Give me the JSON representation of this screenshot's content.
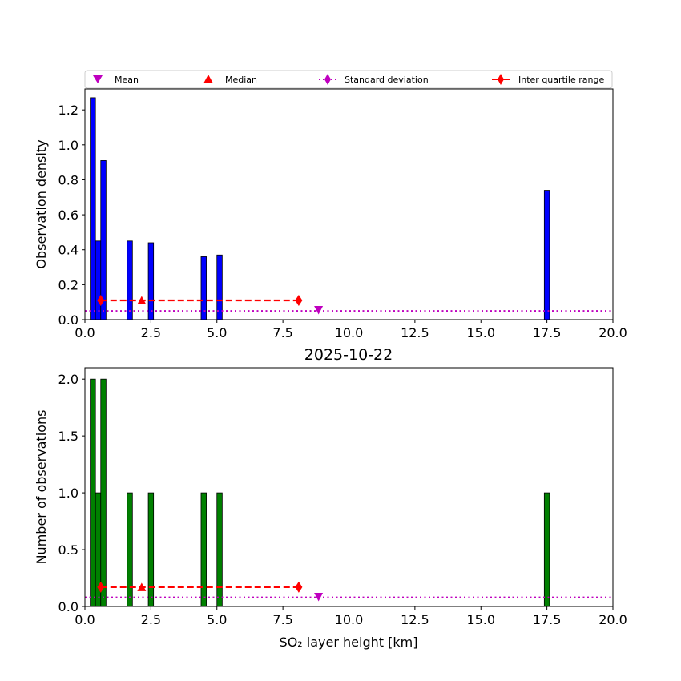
{
  "title": "2025-10-22",
  "legend": {
    "mean": "Mean",
    "median": "Median",
    "std": "Standard deviation",
    "iqr": "Inter quartile range"
  },
  "colors": {
    "top_bars": "#0000ff",
    "bottom_bars": "#008000",
    "mean": "#bf00bf",
    "median": "#ff0000",
    "std": "#bf00bf",
    "iqr": "#ff0000"
  },
  "chart_data": [
    {
      "type": "bar",
      "panel": "top",
      "xlabel": "",
      "ylabel": "Observation density",
      "xlim": [
        0,
        20
      ],
      "ylim": [
        0,
        1.32
      ],
      "xticks": [
        0.0,
        2.5,
        5.0,
        7.5,
        10.0,
        12.5,
        15.0,
        17.5,
        20.0
      ],
      "xtick_labels": [
        "0.0",
        "2.5",
        "5.0",
        "7.5",
        "10.0",
        "12.5",
        "15.0",
        "17.5",
        "20.0"
      ],
      "yticks": [
        0.0,
        0.2,
        0.4,
        0.6,
        0.8,
        1.0,
        1.2
      ],
      "ytick_labels": [
        "0.0",
        "0.2",
        "0.4",
        "0.6",
        "0.8",
        "1.0",
        "1.2"
      ],
      "bar_width": 0.2,
      "bars": [
        {
          "x": 0.3,
          "value": 1.27
        },
        {
          "x": 0.5,
          "value": 0.45
        },
        {
          "x": 0.7,
          "value": 0.91
        },
        {
          "x": 1.7,
          "value": 0.45
        },
        {
          "x": 2.5,
          "value": 0.44
        },
        {
          "x": 4.5,
          "value": 0.36
        },
        {
          "x": 5.1,
          "value": 0.37
        },
        {
          "x": 17.5,
          "value": 0.74
        }
      ],
      "mean": {
        "x": 8.85,
        "y": 0.055
      },
      "median": {
        "x": 2.15,
        "y": 0.11
      },
      "std_y": 0.05,
      "iqr": {
        "x": [
          0.6,
          8.1
        ],
        "y": 0.11
      }
    },
    {
      "type": "bar",
      "panel": "bottom",
      "xlabel": "SO₂ layer height [km]",
      "ylabel": "Number of observations",
      "xlim": [
        0,
        20
      ],
      "ylim": [
        0,
        2.1
      ],
      "xticks": [
        0.0,
        2.5,
        5.0,
        7.5,
        10.0,
        12.5,
        15.0,
        17.5,
        20.0
      ],
      "xtick_labels": [
        "0.0",
        "2.5",
        "5.0",
        "7.5",
        "10.0",
        "12.5",
        "15.0",
        "17.5",
        "20.0"
      ],
      "yticks": [
        0.0,
        0.5,
        1.0,
        1.5,
        2.0
      ],
      "ytick_labels": [
        "0.0",
        "0.5",
        "1.0",
        "1.5",
        "2.0"
      ],
      "bar_width": 0.2,
      "bars": [
        {
          "x": 0.3,
          "value": 2
        },
        {
          "x": 0.5,
          "value": 1
        },
        {
          "x": 0.7,
          "value": 2
        },
        {
          "x": 1.7,
          "value": 1
        },
        {
          "x": 2.5,
          "value": 1
        },
        {
          "x": 4.5,
          "value": 1
        },
        {
          "x": 5.1,
          "value": 1
        },
        {
          "x": 17.5,
          "value": 1
        }
      ],
      "mean": {
        "x": 8.85,
        "y": 0.085
      },
      "median": {
        "x": 2.15,
        "y": 0.17
      },
      "std_y": 0.08,
      "iqr": {
        "x": [
          0.6,
          8.1
        ],
        "y": 0.17
      }
    }
  ]
}
